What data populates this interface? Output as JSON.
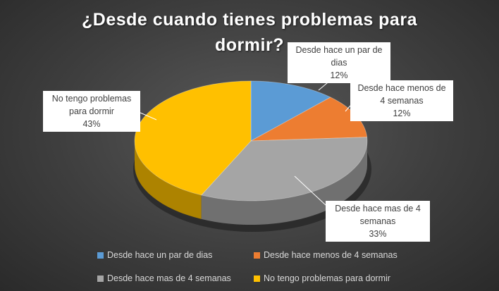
{
  "chart_data": {
    "type": "pie",
    "title": "¿Desde cuando tienes problemas para dormir?",
    "categories": [
      "Desde hace un par de dias",
      "Desde hace menos de 4 semanas",
      "Desde hace mas de 4 semanas",
      "No tengo problemas para dormir"
    ],
    "values": [
      12,
      12,
      33,
      43
    ],
    "value_unit": "%",
    "colors": [
      "#5b9bd5",
      "#ed7d31",
      "#a5a5a5",
      "#ffc000"
    ],
    "style": "3d-pie",
    "legend": "bottom",
    "data_labels": [
      {
        "category": "Desde hace un par de dias",
        "lines": [
          "Desde hace un par de",
          "dias"
        ],
        "percent": "12%"
      },
      {
        "category": "Desde hace menos de 4 semanas",
        "lines": [
          "Desde hace menos de",
          "4 semanas"
        ],
        "percent": "12%"
      },
      {
        "category": "Desde hace mas de 4 semanas",
        "lines": [
          "Desde hace mas de 4",
          "semanas"
        ],
        "percent": "33%"
      },
      {
        "category": "No tengo problemas para dormir",
        "lines": [
          "No tengo problemas",
          "para dormir"
        ],
        "percent": "43%"
      }
    ]
  },
  "title_lines": [
    "¿Desde cuando tienes problemas para",
    "dormir?"
  ],
  "legend_items": [
    {
      "label": "Desde hace un par de dias",
      "color": "#5b9bd5"
    },
    {
      "label": "Desde hace menos de 4 semanas",
      "color": "#ed7d31"
    },
    {
      "label": "Desde hace mas de 4 semanas",
      "color": "#a5a5a5"
    },
    {
      "label": "No tengo problemas para dormir",
      "color": "#ffc000"
    }
  ]
}
